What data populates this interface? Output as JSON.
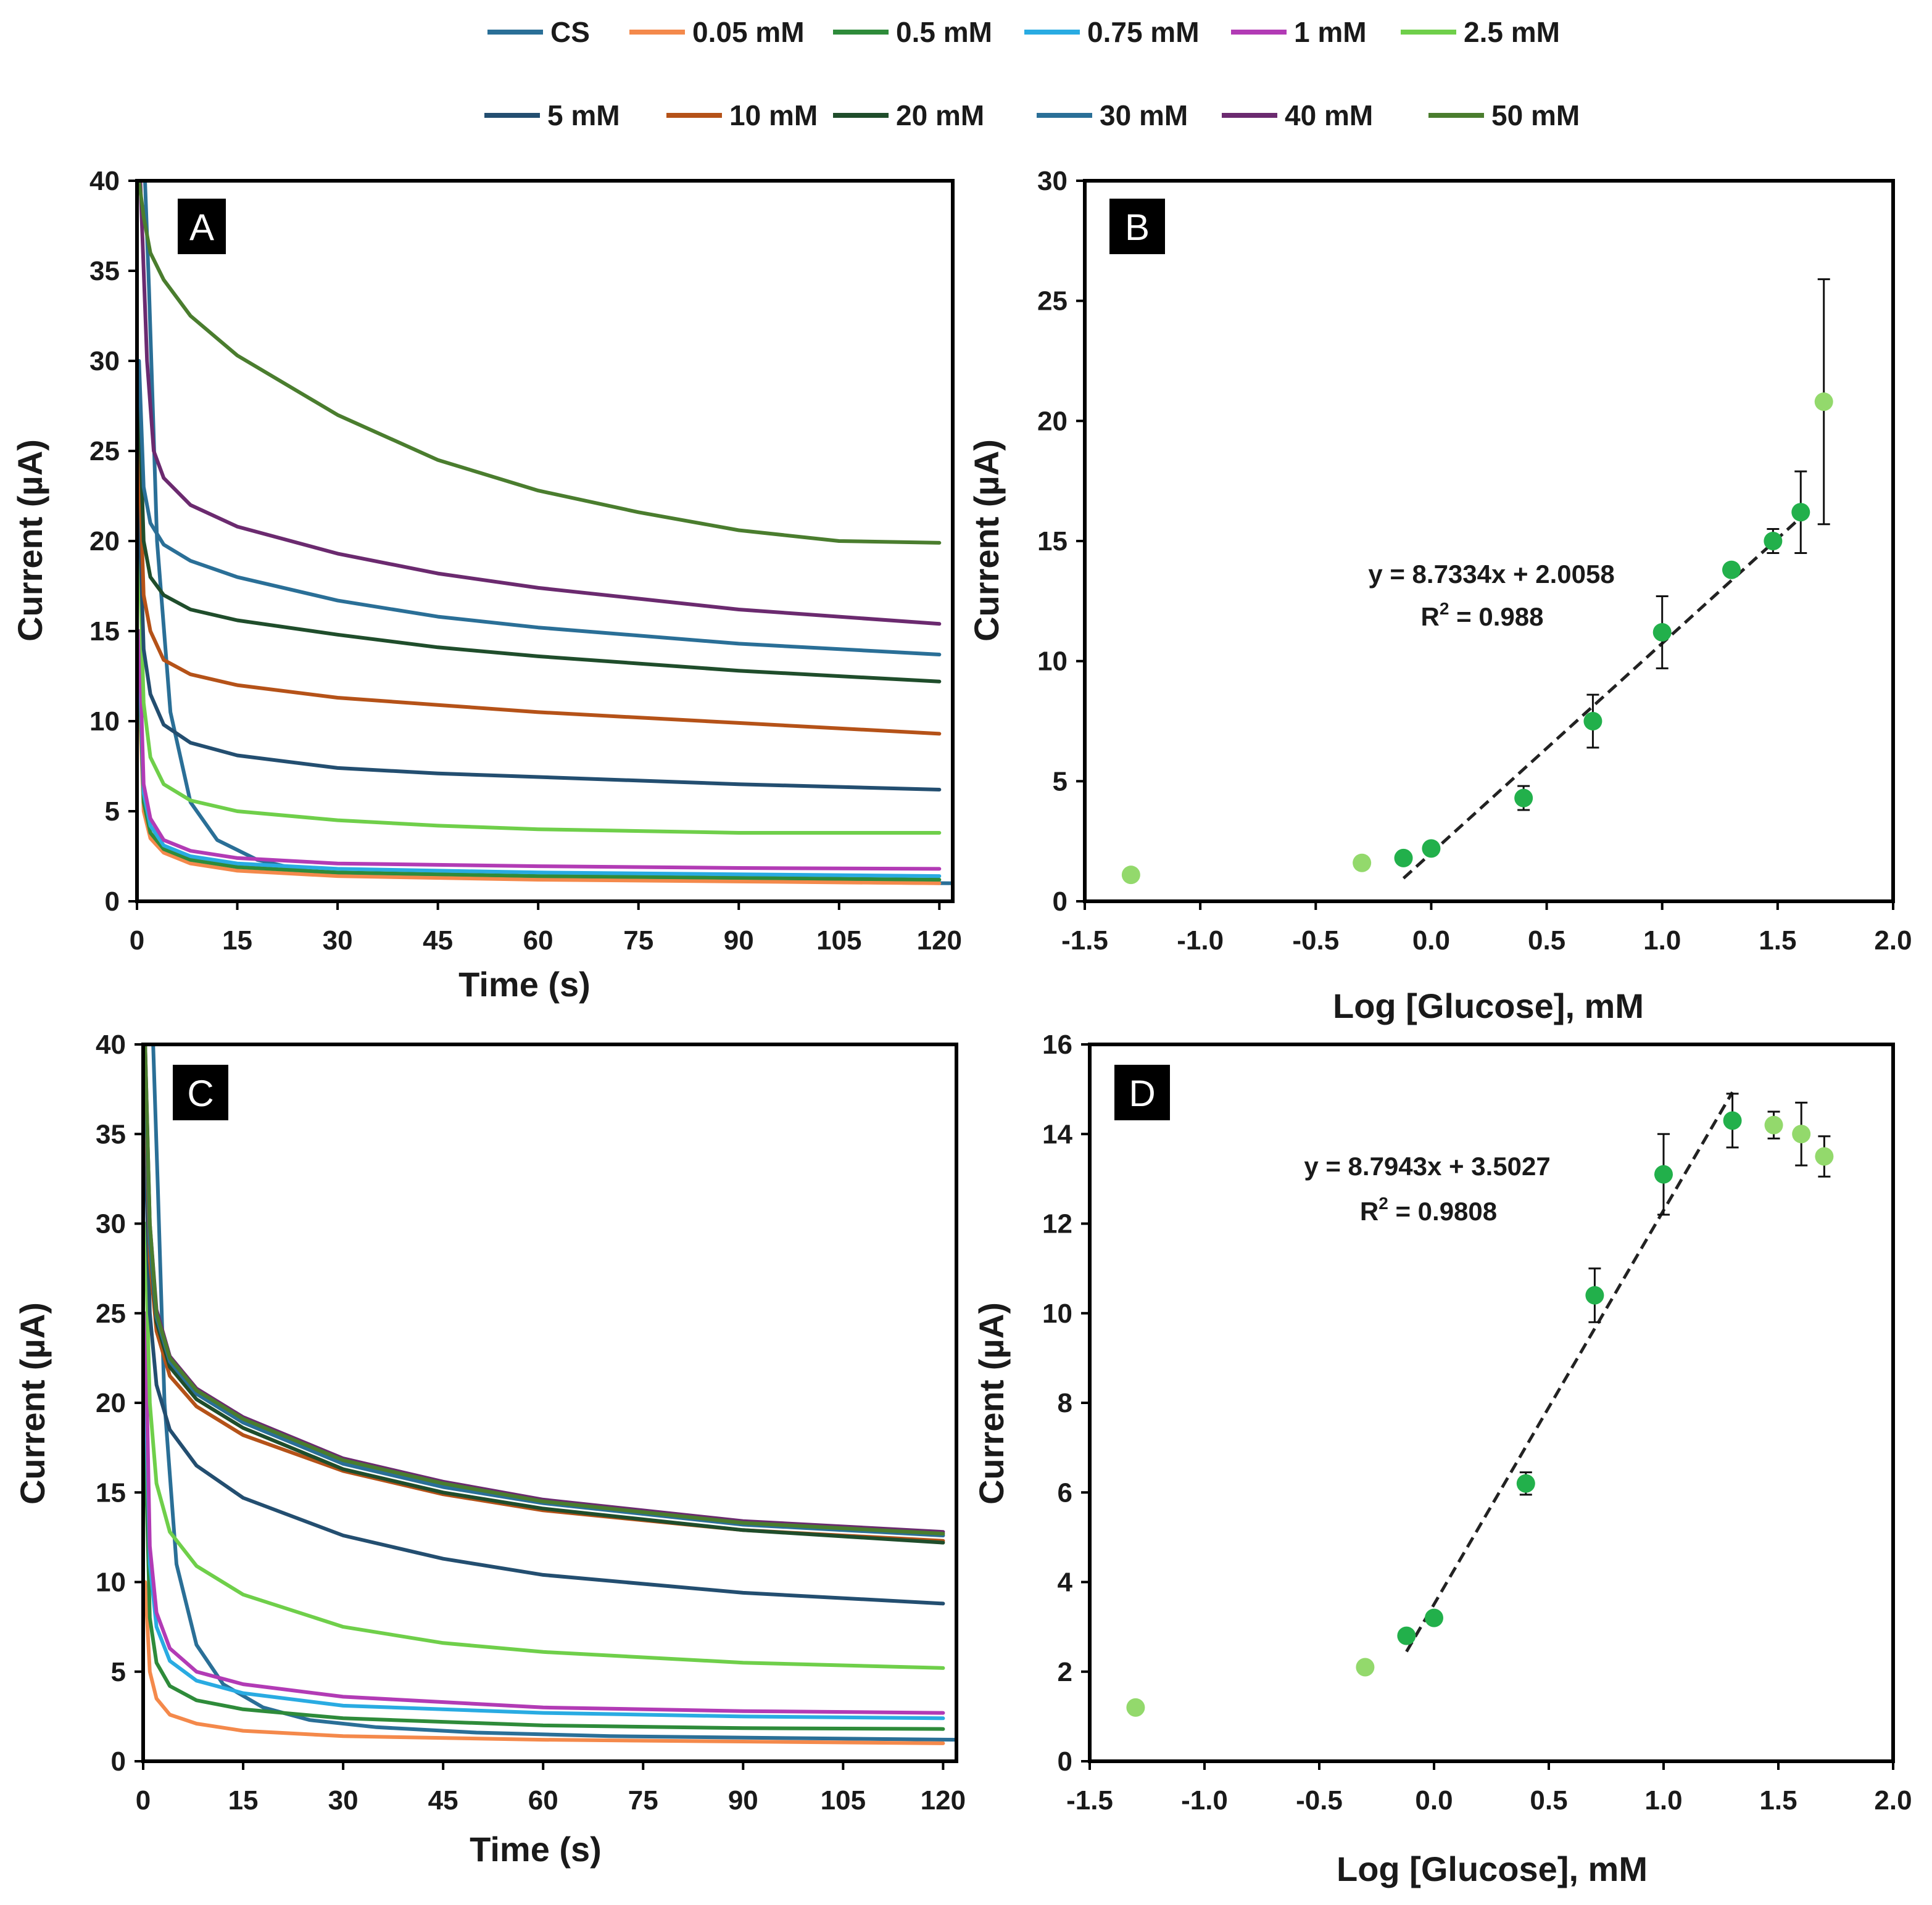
{
  "legend": [
    {
      "label": "CS",
      "color": "#2a6f97"
    },
    {
      "label": "0.05 mM",
      "color": "#f4894b"
    },
    {
      "label": "0.5 mM",
      "color": "#2e8b3a"
    },
    {
      "label": "0.75 mM",
      "color": "#29abe2"
    },
    {
      "label": "1 mM",
      "color": "#b23bb5"
    },
    {
      "label": "2.5 mM",
      "color": "#6fcf4a"
    },
    {
      "label": "5 mM",
      "color": "#234e70"
    },
    {
      "label": "10 mM",
      "color": "#b55218"
    },
    {
      "label": "20 mM",
      "color": "#1f4d2b"
    },
    {
      "label": "30 mM",
      "color": "#2a6f97"
    },
    {
      "label": "40 mM",
      "color": "#6b2a6f"
    },
    {
      "label": "50 mM",
      "color": "#4a7d2e"
    }
  ],
  "chart_data": [
    {
      "panel": "A",
      "type": "line",
      "xlabel": "Time (s)",
      "ylabel": "Current (µA)",
      "xlim": [
        0,
        122
      ],
      "ylim": [
        0,
        40
      ],
      "xticks": [
        0,
        15,
        30,
        45,
        60,
        75,
        90,
        105,
        120
      ],
      "yticks": [
        0,
        5,
        10,
        15,
        20,
        25,
        30,
        35,
        40
      ],
      "series": [
        {
          "name": "CS",
          "color": "#2a6f97",
          "x": [
            1.2,
            1.8,
            3,
            5,
            8,
            12,
            18,
            25,
            35,
            50,
            70,
            95,
            122
          ],
          "values": [
            40,
            34,
            20,
            10.5,
            5.5,
            3.4,
            2.3,
            1.7,
            1.4,
            1.3,
            1.2,
            1.1,
            1.0
          ]
        },
        {
          "name": "0.05 mM",
          "color": "#f4894b",
          "x": [
            0.3,
            1,
            2,
            4,
            8,
            15,
            30,
            60,
            90,
            120
          ],
          "values": [
            12,
            5,
            3.5,
            2.7,
            2.1,
            1.7,
            1.4,
            1.2,
            1.1,
            1.0
          ]
        },
        {
          "name": "0.5 mM",
          "color": "#2e8b3a",
          "x": [
            0.3,
            1,
            2,
            4,
            8,
            15,
            30,
            60,
            90,
            120
          ],
          "values": [
            13,
            5.5,
            3.8,
            2.9,
            2.3,
            1.9,
            1.6,
            1.4,
            1.3,
            1.2
          ]
        },
        {
          "name": "0.75 mM",
          "color": "#29abe2",
          "x": [
            0.3,
            1,
            2,
            4,
            8,
            15,
            30,
            60,
            90,
            120
          ],
          "values": [
            14,
            6,
            4.2,
            3.1,
            2.5,
            2.1,
            1.8,
            1.6,
            1.5,
            1.4
          ]
        },
        {
          "name": "1 mM",
          "color": "#b23bb5",
          "x": [
            0.3,
            1,
            2,
            4,
            8,
            15,
            30,
            60,
            90,
            120
          ],
          "values": [
            15,
            6.5,
            4.6,
            3.4,
            2.8,
            2.4,
            2.1,
            1.95,
            1.85,
            1.8
          ]
        },
        {
          "name": "2.5 mM",
          "color": "#6fcf4a",
          "x": [
            0.3,
            1,
            2,
            4,
            8,
            15,
            30,
            45,
            60,
            90,
            120
          ],
          "values": [
            20,
            11,
            8,
            6.5,
            5.6,
            5.0,
            4.5,
            4.2,
            4.0,
            3.8,
            3.8
          ]
        },
        {
          "name": "5 mM",
          "color": "#234e70",
          "x": [
            0.3,
            1,
            2,
            4,
            8,
            15,
            30,
            45,
            60,
            90,
            120
          ],
          "values": [
            22,
            14,
            11.5,
            9.8,
            8.8,
            8.1,
            7.4,
            7.1,
            6.9,
            6.5,
            6.2
          ]
        },
        {
          "name": "10 mM",
          "color": "#b55218",
          "x": [
            0.3,
            1,
            2,
            4,
            8,
            15,
            30,
            45,
            60,
            90,
            120
          ],
          "values": [
            25,
            17,
            15,
            13.4,
            12.6,
            12.0,
            11.3,
            10.9,
            10.5,
            9.9,
            9.3
          ]
        },
        {
          "name": "20 mM",
          "color": "#1f4d2b",
          "x": [
            0.3,
            1,
            2,
            4,
            8,
            15,
            30,
            45,
            60,
            90,
            120
          ],
          "values": [
            28,
            20,
            18,
            17,
            16.2,
            15.6,
            14.8,
            14.1,
            13.6,
            12.8,
            12.2
          ]
        },
        {
          "name": "30 mM",
          "color": "#2a6f97",
          "x": [
            0.3,
            1,
            2,
            4,
            8,
            15,
            30,
            45,
            60,
            90,
            120
          ],
          "values": [
            30,
            23,
            21,
            19.8,
            18.9,
            18.0,
            16.7,
            15.8,
            15.2,
            14.3,
            13.7
          ]
        },
        {
          "name": "40 mM",
          "color": "#6b2a6f",
          "x": [
            0.5,
            1.5,
            2.5,
            4,
            8,
            15,
            30,
            45,
            60,
            90,
            120
          ],
          "values": [
            40,
            30,
            25,
            23.5,
            22,
            20.8,
            19.3,
            18.2,
            17.4,
            16.2,
            15.4
          ]
        },
        {
          "name": "50 mM",
          "color": "#4a7d2e",
          "x": [
            0.3,
            1,
            2,
            4,
            8,
            15,
            30,
            45,
            60,
            75,
            90,
            105,
            120
          ],
          "values": [
            40,
            38,
            36,
            34.5,
            32.5,
            30.3,
            27.0,
            24.5,
            22.8,
            21.6,
            20.6,
            20.0,
            19.9
          ]
        }
      ]
    },
    {
      "panel": "B",
      "type": "scatter",
      "xlabel": "Log [Glucose], mM",
      "ylabel": "Current (µA)",
      "xlim": [
        -1.5,
        2.0
      ],
      "ylim": [
        0,
        30
      ],
      "xticks": [
        -1.5,
        -1.0,
        -0.5,
        0.0,
        0.5,
        1.0,
        1.5,
        2.0
      ],
      "xtick_labels": [
        "-1.5",
        "-1.0",
        "-0.5",
        "0.0",
        "0.5",
        "1.0",
        "1.5",
        "2.0"
      ],
      "yticks": [
        0,
        5,
        10,
        15,
        20,
        25,
        30
      ],
      "points": [
        {
          "x": -1.3,
          "y": 1.1,
          "err": 0,
          "fit": false
        },
        {
          "x": -0.3,
          "y": 1.6,
          "err": 0,
          "fit": false
        },
        {
          "x": -0.12,
          "y": 1.8,
          "err": 0,
          "fit": true
        },
        {
          "x": 0.0,
          "y": 2.2,
          "err": 0,
          "fit": true
        },
        {
          "x": 0.4,
          "y": 4.3,
          "err": 0.5,
          "fit": true
        },
        {
          "x": 0.7,
          "y": 7.5,
          "err": 1.1,
          "fit": true
        },
        {
          "x": 1.0,
          "y": 11.2,
          "err": 1.5,
          "fit": true
        },
        {
          "x": 1.3,
          "y": 13.8,
          "err": 0,
          "fit": true
        },
        {
          "x": 1.48,
          "y": 15.0,
          "err": 0.5,
          "fit": true
        },
        {
          "x": 1.6,
          "y": 16.2,
          "err": 1.7,
          "fit": true
        },
        {
          "x": 1.7,
          "y": 20.8,
          "err": 5.1,
          "fit": false
        }
      ],
      "fit_line": {
        "slope": 8.7334,
        "intercept": 2.0058,
        "x_range": [
          -0.12,
          1.6
        ]
      },
      "equation": "y = 8.7334x + 2.0058",
      "r2_label": "R",
      "r2_sup": "2",
      "r2_value": " = 0.988"
    },
    {
      "panel": "C",
      "type": "line",
      "xlabel": "Time (s)",
      "ylabel": "Current (µA)",
      "xlim": [
        0,
        122
      ],
      "ylim": [
        0,
        40
      ],
      "xticks": [
        0,
        15,
        30,
        45,
        60,
        75,
        90,
        105,
        120
      ],
      "yticks": [
        0,
        5,
        10,
        15,
        20,
        25,
        30,
        35,
        40
      ],
      "series": [
        {
          "name": "CS",
          "color": "#2a6f97",
          "x": [
            1.5,
            2.2,
            3.2,
            5,
            8,
            12,
            18,
            25,
            35,
            50,
            70,
            95,
            122
          ],
          "values": [
            40,
            32,
            20,
            11,
            6.5,
            4.3,
            3.0,
            2.3,
            1.9,
            1.6,
            1.4,
            1.3,
            1.2
          ]
        },
        {
          "name": "0.05 mM",
          "color": "#f4894b",
          "x": [
            0.3,
            1,
            2,
            4,
            8,
            15,
            30,
            60,
            90,
            120
          ],
          "values": [
            10,
            5,
            3.5,
            2.6,
            2.1,
            1.7,
            1.4,
            1.2,
            1.1,
            1.0
          ]
        },
        {
          "name": "0.5 mM",
          "color": "#2e8b3a",
          "x": [
            0.3,
            1,
            2,
            4,
            8,
            15,
            30,
            60,
            90,
            120
          ],
          "values": [
            18,
            8,
            5.5,
            4.2,
            3.4,
            2.9,
            2.4,
            2.0,
            1.85,
            1.8
          ]
        },
        {
          "name": "0.75 mM",
          "color": "#29abe2",
          "x": [
            0.3,
            1,
            2,
            4,
            8,
            15,
            30,
            60,
            90,
            120
          ],
          "values": [
            22,
            11,
            7.5,
            5.6,
            4.5,
            3.8,
            3.1,
            2.7,
            2.5,
            2.4
          ]
        },
        {
          "name": "1 mM",
          "color": "#b23bb5",
          "x": [
            0.3,
            1,
            2,
            4,
            8,
            15,
            30,
            60,
            90,
            120
          ],
          "values": [
            25,
            12,
            8.3,
            6.3,
            5.0,
            4.3,
            3.6,
            3.0,
            2.8,
            2.7
          ]
        },
        {
          "name": "2.5 mM",
          "color": "#6fcf4a",
          "x": [
            0.3,
            1,
            2,
            4,
            8,
            15,
            30,
            45,
            60,
            90,
            120
          ],
          "values": [
            30,
            20,
            15.5,
            12.8,
            10.9,
            9.3,
            7.5,
            6.6,
            6.1,
            5.5,
            5.2
          ]
        },
        {
          "name": "5 mM",
          "color": "#234e70",
          "x": [
            0.3,
            1,
            2,
            4,
            8,
            15,
            30,
            45,
            60,
            90,
            120
          ],
          "values": [
            35,
            25,
            21,
            18.5,
            16.5,
            14.7,
            12.6,
            11.3,
            10.4,
            9.4,
            8.8
          ]
        },
        {
          "name": "10 mM",
          "color": "#b55218",
          "x": [
            0.3,
            1,
            2,
            4,
            8,
            15,
            30,
            45,
            60,
            90,
            120
          ],
          "values": [
            38,
            28,
            24,
            21.5,
            19.8,
            18.2,
            16.2,
            14.9,
            14.0,
            12.9,
            12.3
          ]
        },
        {
          "name": "20 mM",
          "color": "#1f4d2b",
          "x": [
            0.3,
            1,
            2,
            4,
            8,
            15,
            30,
            45,
            60,
            90,
            120
          ],
          "values": [
            39,
            29,
            24.5,
            22,
            20.2,
            18.6,
            16.3,
            15.0,
            14.1,
            12.9,
            12.2
          ]
        },
        {
          "name": "30 mM",
          "color": "#2a6f97",
          "x": [
            0.3,
            1,
            2,
            4,
            8,
            15,
            30,
            45,
            60,
            90,
            120
          ],
          "values": [
            39,
            29,
            24.8,
            22.3,
            20.5,
            18.9,
            16.6,
            15.3,
            14.4,
            13.2,
            12.6
          ]
        },
        {
          "name": "40 mM",
          "color": "#6b2a6f",
          "x": [
            0.3,
            1,
            2,
            4,
            8,
            15,
            30,
            45,
            60,
            90,
            120
          ],
          "values": [
            40,
            30,
            25.2,
            22.6,
            20.8,
            19.2,
            16.9,
            15.6,
            14.6,
            13.4,
            12.8
          ]
        },
        {
          "name": "50 mM",
          "color": "#4a7d2e",
          "x": [
            0.3,
            1,
            2,
            4,
            8,
            15,
            30,
            45,
            60,
            90,
            120
          ],
          "values": [
            40,
            30,
            25,
            22.5,
            20.7,
            19.1,
            16.8,
            15.5,
            14.5,
            13.3,
            12.7
          ]
        }
      ]
    },
    {
      "panel": "D",
      "type": "scatter",
      "xlabel": "Log [Glucose], mM",
      "ylabel": "Current (µA)",
      "xlim": [
        -1.5,
        2.0
      ],
      "ylim": [
        0,
        16
      ],
      "xticks": [
        -1.5,
        -1.0,
        -0.5,
        0.0,
        0.5,
        1.0,
        1.5,
        2.0
      ],
      "xtick_labels": [
        "-1.5",
        "-1.0",
        "-0.5",
        "0.0",
        "0.5",
        "1.0",
        "1.5",
        "2.0"
      ],
      "yticks": [
        0,
        2,
        4,
        6,
        8,
        10,
        12,
        14,
        16
      ],
      "points": [
        {
          "x": -1.3,
          "y": 1.2,
          "err": 0,
          "fit": false
        },
        {
          "x": -0.3,
          "y": 2.1,
          "err": 0,
          "fit": false
        },
        {
          "x": -0.12,
          "y": 2.8,
          "err": 0,
          "fit": true
        },
        {
          "x": 0.0,
          "y": 3.2,
          "err": 0,
          "fit": true
        },
        {
          "x": 0.4,
          "y": 6.2,
          "err": 0.25,
          "fit": true
        },
        {
          "x": 0.7,
          "y": 10.4,
          "err": 0.6,
          "fit": true
        },
        {
          "x": 1.0,
          "y": 13.1,
          "err": 0.9,
          "fit": true
        },
        {
          "x": 1.3,
          "y": 14.3,
          "err": 0.6,
          "fit": true
        },
        {
          "x": 1.48,
          "y": 14.2,
          "err": 0.3,
          "fit": false
        },
        {
          "x": 1.6,
          "y": 14.0,
          "err": 0.7,
          "fit": false
        },
        {
          "x": 1.7,
          "y": 13.5,
          "err": 0.45,
          "fit": false
        }
      ],
      "fit_line": {
        "slope": 8.7943,
        "intercept": 3.5027,
        "x_range": [
          -0.12,
          1.3
        ]
      },
      "equation": "y = 8.7943x + 3.5027",
      "r2_label": "R",
      "r2_sup": "2",
      "r2_value": " = 0.9808"
    }
  ]
}
